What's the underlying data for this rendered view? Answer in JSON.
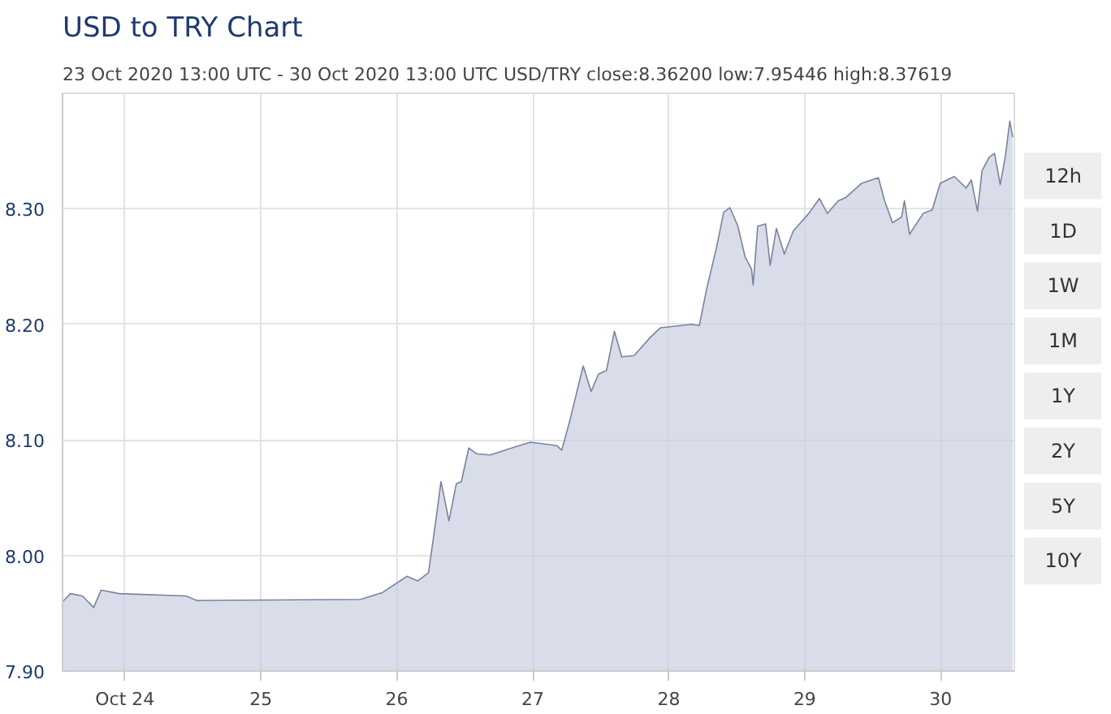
{
  "chart_data": {
    "type": "area",
    "title": "USD to TRY Chart",
    "subtitle": "23 Oct 2020 13:00 UTC - 30 Oct 2020 13:00 UTC   USD/TRY close:8.36200 low:7.95446 high:8.37619",
    "x": [
      "2020-10-23T13:00",
      "2020-10-23T14:24",
      "2020-10-23T16:30",
      "2020-10-23T18:30",
      "2020-10-23T19:48",
      "2020-10-23T23:00",
      "2020-10-24T10:48",
      "2020-10-24T12:42",
      "2020-10-25T17:36",
      "2020-10-25T21:30",
      "2020-10-26T01:48",
      "2020-10-26T03:42",
      "2020-10-26T05:36",
      "2020-10-26T07:00",
      "2020-10-26T07:48",
      "2020-10-26T09:12",
      "2020-10-26T10:30",
      "2020-10-26T11:24",
      "2020-10-26T12:42",
      "2020-10-26T14:06",
      "2020-10-26T16:30",
      "2020-10-26T20:54",
      "2020-10-26T23:36",
      "2020-10-27T04:18",
      "2020-10-27T05:06",
      "2020-10-27T06:30",
      "2020-10-27T08:54",
      "2020-10-27T10:18",
      "2020-10-27T11:36",
      "2020-10-27T13:00",
      "2020-10-27T14:24",
      "2020-10-27T15:42",
      "2020-10-27T17:54",
      "2020-10-27T20:36",
      "2020-10-27T22:30",
      "2020-10-28T04:00",
      "2020-10-28T05:24",
      "2020-10-28T06:42",
      "2020-10-28T08:24",
      "2020-10-28T09:42",
      "2020-10-28T10:48",
      "2020-10-28T12:12",
      "2020-10-28T13:30",
      "2020-10-28T14:36",
      "2020-10-28T14:54",
      "2020-10-28T15:42",
      "2020-10-28T17:06",
      "2020-10-28T17:54",
      "2020-10-28T19:00",
      "2020-10-28T20:24",
      "2020-10-28T22:00",
      "2020-10-29T00:42",
      "2020-10-29T02:36",
      "2020-10-29T04:00",
      "2020-10-29T05:54",
      "2020-10-29T07:18",
      "2020-10-29T10:00",
      "2020-10-29T13:00",
      "2020-10-29T14:06",
      "2020-10-29T15:30",
      "2020-10-29T17:06",
      "2020-10-29T17:36",
      "2020-10-29T18:30",
      "2020-10-29T20:54",
      "2020-10-29T22:30",
      "2020-10-29T23:54",
      "2020-10-30T02:24",
      "2020-10-30T04:30",
      "2020-10-30T05:24",
      "2020-10-30T06:30",
      "2020-10-30T07:18",
      "2020-10-30T08:36",
      "2020-10-30T09:30",
      "2020-10-30T10:30",
      "2020-10-30T11:24",
      "2020-10-30T12:12",
      "2020-10-30T12:42"
    ],
    "series": [
      {
        "color": "#7a82a0",
        "values": [
          7.96,
          7.967,
          7.965,
          7.955,
          7.97,
          7.967,
          7.965,
          7.961,
          7.962,
          7.968,
          7.982,
          7.978,
          7.985,
          8.034,
          8.064,
          8.03,
          8.062,
          8.064,
          8.093,
          8.088,
          8.087,
          8.094,
          8.098,
          8.095,
          8.091,
          8.116,
          8.164,
          8.142,
          8.157,
          8.16,
          8.194,
          8.172,
          8.173,
          8.188,
          8.197,
          8.2,
          8.199,
          8.231,
          8.266,
          8.297,
          8.301,
          8.285,
          8.258,
          8.248,
          8.234,
          8.285,
          8.287,
          8.251,
          8.283,
          8.261,
          8.281,
          8.296,
          8.309,
          8.296,
          8.307,
          8.31,
          8.322,
          8.327,
          8.307,
          8.288,
          8.293,
          8.307,
          8.278,
          8.296,
          8.299,
          8.322,
          8.328,
          8.318,
          8.325,
          8.298,
          8.333,
          8.345,
          8.348,
          8.321,
          8.345,
          8.376,
          8.362
        ]
      }
    ],
    "xlim": [
      "2020-10-23T13:00",
      "2020-10-30T13:00"
    ],
    "xticks": [
      {
        "value": "2020-10-24",
        "label": "Oct 24"
      },
      {
        "value": "2020-10-25",
        "label": "25"
      },
      {
        "value": "2020-10-26",
        "label": "26"
      },
      {
        "value": "2020-10-27",
        "label": "27"
      },
      {
        "value": "2020-10-28",
        "label": "28"
      },
      {
        "value": "2020-10-29",
        "label": "29"
      },
      {
        "value": "2020-10-30",
        "label": "30"
      }
    ],
    "ylim": [
      7.9,
      8.4
    ],
    "yticks": [
      {
        "value": 7.9,
        "label": "7.90"
      },
      {
        "value": 8.0,
        "label": "8.00"
      },
      {
        "value": 8.1,
        "label": "8.10"
      },
      {
        "value": 8.2,
        "label": "8.20"
      },
      {
        "value": 8.3,
        "label": "8.30"
      }
    ],
    "grid": true,
    "annotations": [
      "12h",
      "1D",
      "1W",
      "1M",
      "1Y",
      "2Y",
      "5Y",
      "10Y"
    ]
  }
}
